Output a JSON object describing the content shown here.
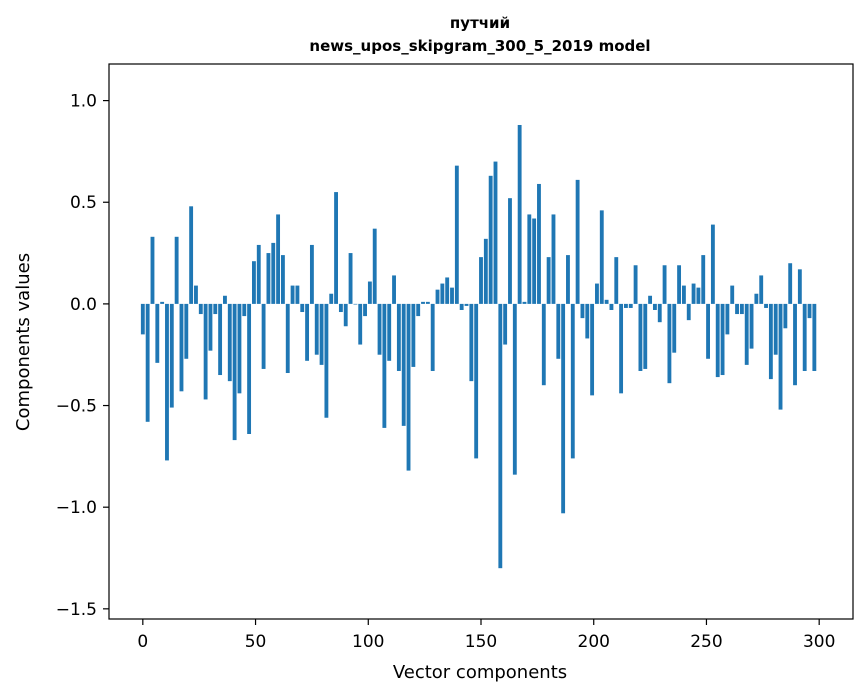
{
  "chart_data": {
    "type": "bar",
    "title": "путчий",
    "subtitle": "news_upos_skipgram_300_5_2019 model",
    "xlabel": "Vector components",
    "ylabel": "Components values",
    "xlim": [
      -15,
      315
    ],
    "ylim": [
      -1.55,
      1.18
    ],
    "xticks": [
      0,
      50,
      100,
      150,
      200,
      250,
      300
    ],
    "yticks": [
      -1.5,
      -1.0,
      -0.5,
      0.0,
      0.5,
      1.0
    ],
    "xtick_labels": [
      "0",
      "50",
      "100",
      "150",
      "200",
      "250",
      "300"
    ],
    "ytick_labels": [
      "−1.5",
      "−1.0",
      "−0.5",
      "0.0",
      "0.5",
      "1.0"
    ],
    "bar_color": "#1f77b4",
    "grid": false,
    "values": [
      -0.15,
      -0.58,
      0.33,
      -0.29,
      0.01,
      -0.77,
      -0.51,
      0.33,
      -0.43,
      -0.27,
      0.48,
      0.09,
      -0.05,
      -0.47,
      -0.23,
      -0.05,
      -0.35,
      0.04,
      -0.38,
      -0.67,
      -0.44,
      -0.06,
      -0.64,
      0.21,
      0.29,
      -0.32,
      0.25,
      0.3,
      0.44,
      0.24,
      -0.34,
      0.09,
      0.09,
      -0.04,
      -0.28,
      0.29,
      -0.25,
      -0.3,
      -0.56,
      0.05,
      0.55,
      -0.04,
      -0.11,
      0.25,
      0.0,
      -0.2,
      -0.06,
      0.11,
      0.37,
      -0.25,
      -0.61,
      -0.28,
      0.14,
      -0.33,
      -0.6,
      -0.82,
      -0.31,
      -0.06,
      0.01,
      0.01,
      -0.33,
      0.07,
      0.1,
      0.13,
      0.08,
      0.68,
      -0.03,
      -0.01,
      -0.38,
      -0.76,
      0.23,
      0.32,
      0.63,
      0.7,
      -1.3,
      -0.2,
      0.52,
      -0.84,
      0.88,
      0.01,
      0.44,
      0.42,
      0.59,
      -0.4,
      0.23,
      0.44,
      -0.27,
      -1.03,
      0.24,
      -0.76,
      0.61,
      -0.07,
      -0.17,
      -0.45,
      0.1,
      0.46,
      0.02,
      -0.03,
      0.23,
      -0.44,
      -0.02,
      -0.02,
      0.19,
      -0.33,
      -0.32,
      0.04,
      -0.03,
      -0.09,
      0.19,
      -0.39,
      -0.24,
      0.19,
      0.09,
      -0.08,
      0.1,
      0.08,
      0.24,
      -0.27,
      0.39,
      -0.36,
      -0.35,
      -0.15,
      0.09,
      -0.05,
      -0.05,
      -0.3,
      -0.22,
      0.05,
      0.14,
      -0.02,
      -0.37,
      -0.25,
      -0.52,
      -0.12,
      0.2,
      -0.4,
      0.17,
      -0.33,
      -0.07,
      -0.33
    ]
  }
}
